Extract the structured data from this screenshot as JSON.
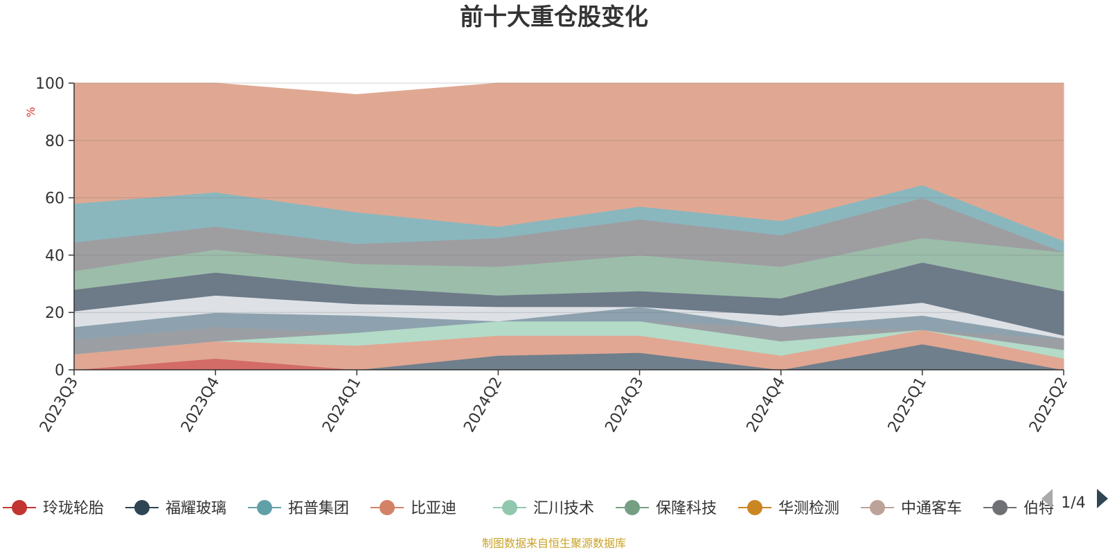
{
  "chart_data": {
    "type": "area",
    "title": "前十大重仓股变化",
    "ylabel": "%",
    "ylim": [
      0,
      100
    ],
    "yticks": [
      0,
      20,
      40,
      60,
      80,
      100
    ],
    "categories": [
      "2023Q3",
      "2023Q4",
      "2024Q1",
      "2024Q2",
      "2024Q3",
      "2024Q4",
      "2025Q1",
      "2025Q2"
    ],
    "layers": [
      {
        "color": "#6f7f8c",
        "values": [
          0,
          0,
          0,
          5,
          6,
          0,
          9,
          0
        ],
        "bottom": [
          0,
          0,
          0,
          0,
          0,
          0,
          0,
          0
        ]
      },
      {
        "color": "#d36b66",
        "values": [
          0,
          4,
          0,
          0,
          0,
          0,
          0,
          0
        ],
        "bottom": [
          0,
          0,
          0,
          0,
          0,
          0,
          0,
          0
        ]
      },
      {
        "color": "#e1a793",
        "values": [
          5.5,
          10,
          8.5,
          12,
          12,
          5,
          14,
          4
        ],
        "bottom": [
          0,
          4,
          0,
          5,
          6,
          0,
          9,
          0
        ]
      },
      {
        "color": "#b3dbc8",
        "values": [
          5.5,
          10,
          13,
          17,
          17,
          10,
          14,
          7
        ],
        "bottom": [
          5.5,
          10,
          8.5,
          12,
          12,
          5,
          14,
          4
        ]
      },
      {
        "color": "#9b9fa4",
        "values": [
          10.5,
          15,
          13,
          17,
          17,
          15,
          14,
          11
        ],
        "bottom": [
          5.5,
          10,
          13,
          17,
          17,
          10,
          14,
          7
        ]
      },
      {
        "color": "#8da2ae",
        "values": [
          15,
          20,
          19,
          17,
          22,
          15,
          19,
          11
        ],
        "bottom": [
          10.5,
          15,
          13,
          17,
          17,
          15,
          14,
          11
        ]
      },
      {
        "color": "#dde1e6",
        "values": [
          20.5,
          26,
          23,
          22,
          22,
          19,
          23.5,
          12
        ],
        "bottom": [
          15,
          20,
          19,
          17,
          22,
          15,
          19,
          11
        ]
      },
      {
        "color": "#6d7a88",
        "values": [
          28,
          34,
          29,
          26,
          27.5,
          25,
          37.5,
          27.5
        ],
        "bottom": [
          20.5,
          26,
          23,
          22,
          22,
          19,
          23.5,
          12
        ]
      },
      {
        "color": "#9cbdaa",
        "values": [
          34.5,
          42,
          37,
          36,
          40,
          36,
          46,
          41
        ],
        "bottom": [
          28,
          34,
          29,
          26,
          27.5,
          25,
          37.5,
          27.5
        ]
      },
      {
        "color": "#9e9ea1",
        "values": [
          44.5,
          50,
          44,
          46,
          52.5,
          47,
          60,
          41
        ],
        "bottom": [
          34.5,
          42,
          37,
          36,
          40,
          36,
          46,
          41
        ]
      },
      {
        "color": "#8ab7be",
        "values": [
          58,
          62,
          55,
          50,
          57,
          52,
          64.5,
          45
        ],
        "bottom": [
          44.5,
          50,
          44,
          46,
          52.5,
          47,
          60,
          41
        ]
      },
      {
        "color": "#e0a893",
        "values": [
          100,
          100,
          96,
          100,
          100,
          100,
          100,
          100
        ],
        "bottom": [
          58,
          62,
          55,
          50,
          57,
          52,
          64.5,
          45
        ]
      }
    ],
    "series": [
      {
        "name": "玲珑轮胎",
        "color": "#c23531"
      },
      {
        "name": "福耀玻璃",
        "color": "#2f4554"
      },
      {
        "name": "拓普集团",
        "color": "#61a0a8"
      },
      {
        "name": "比亚迪",
        "color": "#d48265"
      },
      {
        "name": "汇川技术",
        "color": "#91c7ae"
      },
      {
        "name": "保隆科技",
        "color": "#749f83"
      },
      {
        "name": "华测检测",
        "color": "#ca8622"
      },
      {
        "name": "中通客车",
        "color": "#bda29a"
      },
      {
        "name": "伯特利",
        "color": "#6e7074"
      }
    ],
    "legend_position": "bottom",
    "grid": true
  },
  "legend": {
    "visible_items": [
      "玲珑轮胎",
      "福耀玻璃",
      "拓普集团",
      "比亚迪",
      "汇川技术",
      "保隆科技",
      "华测检测",
      "中通客车",
      "伯特"
    ],
    "page_indicator": "1/4"
  },
  "footer": {
    "source_note": "制图数据来自恒生聚源数据库"
  },
  "colors": {
    "title": "#333333",
    "axis": "#333333",
    "ylabel": "#e03030",
    "footer": "#c9a227",
    "pager_active": "#2f4554",
    "pager_inactive": "#aaaaaa"
  }
}
